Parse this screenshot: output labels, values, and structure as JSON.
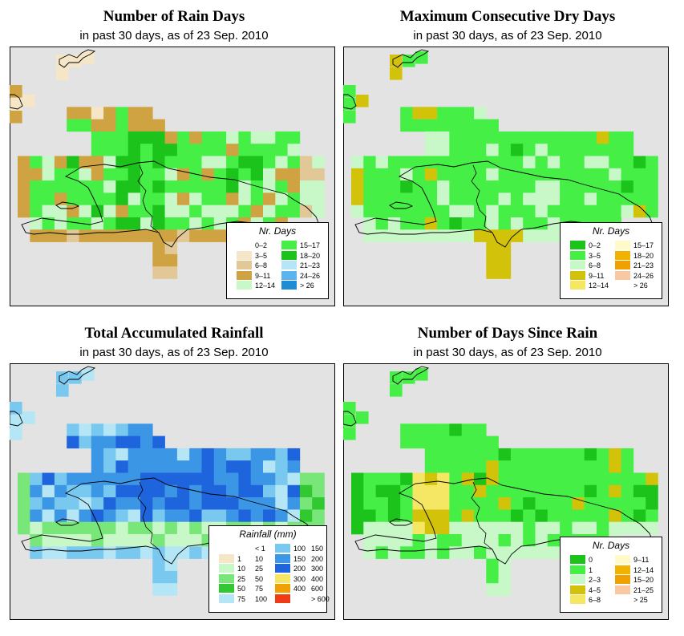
{
  "colors": {
    "background": "#e3e3e3",
    "land_outline": "#000000"
  },
  "panels": [
    {
      "title": "Number of Rain Days",
      "subtitle": "in past 30 days, as of  23 Sep. 2010",
      "legend": {
        "title": "Nr. Days",
        "entries": [
          {
            "label": "0–2",
            "color": "#ffffff"
          },
          {
            "label": "3–5",
            "color": "#f5e6c8"
          },
          {
            "label": "6–8",
            "color": "#e2c896"
          },
          {
            "label": "9–11",
            "color": "#cfa341"
          },
          {
            "label": "12–14",
            "color": "#c8f8c8"
          },
          {
            "label": "15–17",
            "color": "#46ef46"
          },
          {
            "label": "18–20",
            "color": "#1bc31b"
          },
          {
            "label": "21–23",
            "color": "#b4e6f5"
          },
          {
            "label": "24–26",
            "color": "#5ab4f0"
          },
          {
            "label": "> 26",
            "color": "#1e8cd2"
          }
        ]
      }
    },
    {
      "title": "Maximum Consecutive Dry Days",
      "subtitle": "in past 30 days, as of  23 Sep. 2010",
      "legend": {
        "title": "Nr. Days",
        "entries": [
          {
            "label": "0–2",
            "color": "#1bc31b"
          },
          {
            "label": "3–5",
            "color": "#46ef46"
          },
          {
            "label": "6–8",
            "color": "#c8f8c8"
          },
          {
            "label": "9–11",
            "color": "#d2c30a"
          },
          {
            "label": "12–14",
            "color": "#f5e664"
          },
          {
            "label": "15–17",
            "color": "#fffac8"
          },
          {
            "label": "18–20",
            "color": "#f0b400"
          },
          {
            "label": "21–23",
            "color": "#f0a000"
          },
          {
            "label": "24–26",
            "color": "#fac8a0"
          },
          {
            "label": "> 26",
            "color": "#ffffff"
          }
        ]
      }
    },
    {
      "title": "Total Accumulated Rainfall",
      "subtitle": "in past 30 days, as of  23 Sep. 2010",
      "legend": {
        "title": "Rainfall (mm)",
        "entries": [
          {
            "lo": "",
            "hi": "< 1",
            "color": "#ffffff"
          },
          {
            "lo": "1",
            "hi": "10",
            "color": "#f5e6c8"
          },
          {
            "lo": "10",
            "hi": "25",
            "color": "#c8f8c8"
          },
          {
            "lo": "25",
            "hi": "50",
            "color": "#78e678"
          },
          {
            "lo": "50",
            "hi": "75",
            "color": "#32c832"
          },
          {
            "lo": "75",
            "hi": "100",
            "color": "#b4e6f5"
          },
          {
            "lo": "100",
            "hi": "150",
            "color": "#78c8f0"
          },
          {
            "lo": "150",
            "hi": "200",
            "color": "#3c96e6"
          },
          {
            "lo": "200",
            "hi": "300",
            "color": "#1e64dc"
          },
          {
            "lo": "300",
            "hi": "400",
            "color": "#f5e664"
          },
          {
            "lo": "400",
            "hi": "600",
            "color": "#f0a000"
          },
          {
            "lo": "",
            "hi": "> 600",
            "color": "#f03c14"
          }
        ]
      }
    },
    {
      "title": "Number of Days Since Rain",
      "subtitle": "in past 30 days, as of  23 Sep. 2010",
      "legend": {
        "title": "Nr. Days",
        "entries": [
          {
            "label": "0",
            "color": "#1bc31b"
          },
          {
            "label": "1",
            "color": "#46ef46"
          },
          {
            "label": "2–3",
            "color": "#c8f8c8"
          },
          {
            "label": "4–5",
            "color": "#d2c30a"
          },
          {
            "label": "6–8",
            "color": "#f5e664"
          },
          {
            "label": "9–11",
            "color": "#fffac8"
          },
          {
            "label": "12–14",
            "color": "#f0b400"
          },
          {
            "label": "15–20",
            "color": "#f0a000"
          },
          {
            "label": "21–25",
            "color": "#fac8a0"
          },
          {
            "label": "> 25",
            "color": "#ffffff"
          }
        ]
      }
    }
  ]
}
